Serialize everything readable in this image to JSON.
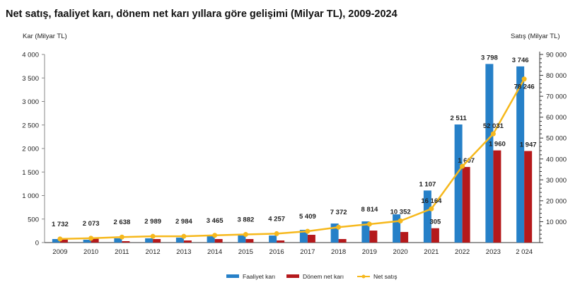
{
  "chart_data": {
    "type": "bar",
    "title": "Net satış, faaliyet karı, dönem net karı yıllara göre gelişimi (Milyar TL), 2009-2024",
    "ylabel": "Kar (Milyar TL)",
    "y2label": "Satış (Milyar TL)",
    "ylim": [
      0,
      4000
    ],
    "y2lim": [
      0,
      90000
    ],
    "yticks": [
      "0",
      "500",
      "1 000",
      "1 500",
      "2 000",
      "2 500",
      "3 000",
      "3 500",
      "4 000"
    ],
    "y2ticks": [
      "10 000",
      "20 000",
      "30 000",
      "40 000",
      "50 000",
      "60 000",
      "70 000",
      "80 000",
      "90 000"
    ],
    "categories": [
      "2009",
      "2010",
      "2011",
      "2012",
      "2013",
      "2014",
      "2015",
      "2016",
      "2017",
      "2018",
      "2019",
      "2020",
      "2021",
      "2022",
      "2023",
      "2 024"
    ],
    "legend_position": "bottom",
    "series": [
      {
        "name": "Faaliyet karı",
        "type": "bar",
        "axis": "left",
        "color": "#2680c8",
        "values": [
          75,
          60,
          90,
          90,
          105,
          135,
          150,
          150,
          270,
          405,
          450,
          600,
          1107,
          2511,
          3798,
          3746
        ],
        "labels": [
          "",
          "",
          "",
          "",
          "",
          "",
          "",
          "",
          "",
          "",
          "",
          "",
          "1 107",
          "2 511",
          "3 798",
          "3 746"
        ]
      },
      {
        "name": "Dönem net karı",
        "type": "bar",
        "axis": "left",
        "color": "#b5191c",
        "values": [
          75,
          90,
          30,
          75,
          45,
          75,
          75,
          45,
          165,
          75,
          255,
          225,
          305,
          1607,
          1960,
          1947
        ],
        "labels": [
          "",
          "",
          "",
          "",
          "",
          "",
          "",
          "",
          "",
          "",
          "",
          "",
          "305",
          "1 607",
          "1 960",
          "1 947"
        ]
      },
      {
        "name": "Net satış",
        "type": "line",
        "axis": "right",
        "color": "#f6b81c",
        "values": [
          1732,
          2073,
          2638,
          2989,
          2984,
          3465,
          3882,
          4257,
          5409,
          7372,
          8814,
          10352,
          16164,
          36500,
          52031,
          78246
        ],
        "labels": [
          "1 732",
          "2 073",
          "2 638",
          "2 989",
          "2 984",
          "3 465",
          "3 882",
          "4 257",
          "5 409",
          "7 372",
          "8 814",
          "10 352",
          "16 164",
          "",
          "52 031",
          "78 246"
        ]
      }
    ]
  }
}
